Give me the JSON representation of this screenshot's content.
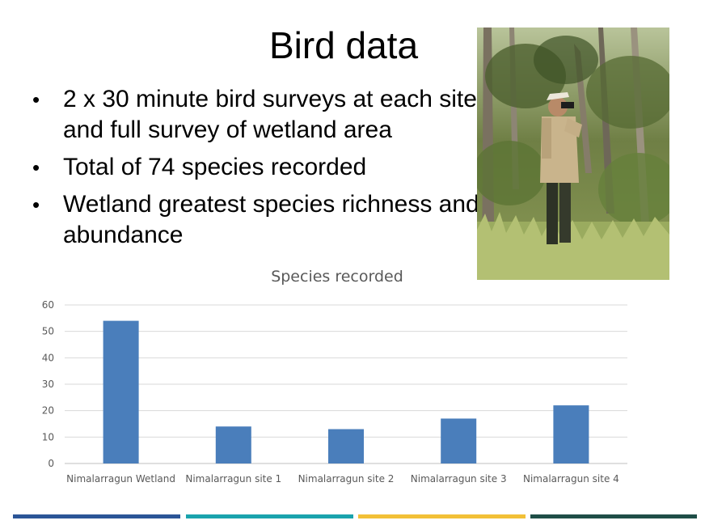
{
  "slide": {
    "title": "Bird data",
    "bullets": [
      "2 x 30 minute bird surveys at each site and full survey of wetland area",
      "Total of 74 species recorded",
      "Wetland greatest species richness and abundance"
    ],
    "bullet_glyph": "•"
  },
  "photo": {
    "description_icon": "birdwatcher-photo"
  },
  "chart_data": {
    "type": "bar",
    "title": "Species recorded",
    "categories": [
      "Nimalarragun Wetland",
      "Nimalarragun site 1",
      "Nimalarragun site 2",
      "Nimalarragun site 3",
      "Nimalarragun site 4"
    ],
    "values": [
      54,
      14,
      13,
      17,
      22
    ],
    "ylim": [
      0,
      60
    ],
    "yticks": [
      0,
      10,
      20,
      30,
      40,
      50,
      60
    ],
    "xlabel": "",
    "ylabel": "",
    "grid": true,
    "legend": "none",
    "bar_color": "#4a7ebb"
  },
  "footer": {
    "colors": [
      "#2b5597",
      "#1aa3ad",
      "#f2c037",
      "#1f4e47"
    ]
  }
}
